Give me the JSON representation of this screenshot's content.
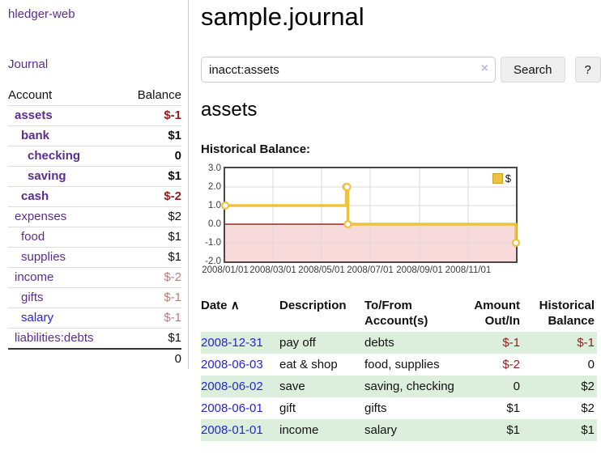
{
  "colors": {
    "purple": "#5c2d91",
    "blue": "#2525d6",
    "negative": "#8f1d1d",
    "negative_muted": "#b97c7c",
    "stripe_green": "#dcefdc",
    "gold": "#EDC240",
    "gold_dark": "#c9a227",
    "chart_border": "#484848",
    "clear_icon": "#c6bbdb"
  },
  "app": {
    "title": "hledger-web"
  },
  "sidebar": {
    "journal_link": "Journal",
    "table": {
      "account_header": "Account",
      "balance_header": "Balance",
      "rows": [
        {
          "account": "assets",
          "balance": "$-1",
          "depth": 1,
          "bold": true,
          "balance_class": "neg",
          "link_class": ""
        },
        {
          "account": "bank",
          "balance": "$1",
          "depth": 2,
          "bold": true,
          "balance_class": "",
          "link_class": ""
        },
        {
          "account": "checking",
          "balance": "0",
          "depth": 3,
          "bold": true,
          "balance_class": "",
          "link_class": ""
        },
        {
          "account": "saving",
          "balance": "$1",
          "depth": 3,
          "bold": true,
          "balance_class": "",
          "link_class": ""
        },
        {
          "account": "cash",
          "balance": "$-2",
          "depth": 2,
          "bold": true,
          "balance_class": "neg",
          "link_class": ""
        },
        {
          "account": "expenses",
          "balance": "$2",
          "depth": 1,
          "bold": false,
          "balance_class": "",
          "link_class": ""
        },
        {
          "account": "food",
          "balance": "$1",
          "depth": 2,
          "bold": false,
          "balance_class": "",
          "link_class": ""
        },
        {
          "account": "supplies",
          "balance": "$1",
          "depth": 2,
          "bold": false,
          "balance_class": "",
          "link_class": ""
        },
        {
          "account": "income",
          "balance": "$-2",
          "depth": 1,
          "bold": false,
          "balance_class": "negmuted",
          "link_class": ""
        },
        {
          "account": "gifts",
          "balance": "$-1",
          "depth": 2,
          "bold": false,
          "balance_class": "negmuted",
          "link_class": ""
        },
        {
          "account": "salary",
          "balance": "$-1",
          "depth": 2,
          "bold": false,
          "balance_class": "negmuted",
          "link_class": "blue"
        },
        {
          "account": "liabilities:debts",
          "balance": "$1",
          "depth": 1,
          "bold": false,
          "balance_class": "",
          "link_class": ""
        }
      ],
      "total": "0"
    }
  },
  "main": {
    "title": "sample.journal",
    "search": {
      "value": "inacct:assets",
      "clear_icon": "×",
      "button_label": "Search",
      "help_label": "?"
    },
    "account_heading": "assets",
    "register": {
      "headers": [
        "Date",
        "Description",
        "To/From Account(s)",
        "Amount Out/In",
        "Historical Balance"
      ],
      "sort_indicator": "∧",
      "rows": [
        {
          "date": "2008-12-31",
          "description": "pay off",
          "accounts": "debts",
          "amount": "$-1",
          "amount_class": "neg",
          "balance": "$-1",
          "balance_class": "neg"
        },
        {
          "date": "2008-06-03",
          "description": "eat & shop",
          "accounts": "food, supplies",
          "amount": "$-2",
          "amount_class": "neg",
          "balance": "0",
          "balance_class": ""
        },
        {
          "date": "2008-06-02",
          "description": "save",
          "accounts": "saving, checking",
          "amount": "0",
          "amount_class": "",
          "balance": "$2",
          "balance_class": ""
        },
        {
          "date": "2008-06-01",
          "description": "gift",
          "accounts": "gifts",
          "amount": "$1",
          "amount_class": "",
          "balance": "$2",
          "balance_class": ""
        },
        {
          "date": "2008-01-01",
          "description": "income",
          "accounts": "salary",
          "amount": "$1",
          "amount_class": "",
          "balance": "$1",
          "balance_class": ""
        }
      ]
    }
  },
  "chart_data": {
    "type": "line",
    "step": true,
    "title": "Historical Balance:",
    "xlim": [
      "2008-01-01",
      "2008-12-31"
    ],
    "ylim": [
      -2,
      3
    ],
    "x_ticks": [
      {
        "date": "2008-01-01",
        "label": "2008/01/01"
      },
      {
        "date": "2008-03-01",
        "label": "2008/03/01"
      },
      {
        "date": "2008-05-01",
        "label": "2008/05/01"
      },
      {
        "date": "2008-07-01",
        "label": "2008/07/01"
      },
      {
        "date": "2008-09-01",
        "label": "2008/09/01"
      },
      {
        "date": "2008-11-01",
        "label": "2008/11/01"
      }
    ],
    "y_ticks": [
      {
        "value": 3,
        "label": "3.0"
      },
      {
        "value": 2,
        "label": "2.0"
      },
      {
        "value": 1,
        "label": "1.0"
      },
      {
        "value": 0,
        "label": "0.0"
      },
      {
        "value": -1,
        "label": "-1.0"
      },
      {
        "value": -2,
        "label": "-2.0"
      }
    ],
    "series": [
      {
        "name": "$",
        "color": "#EDC240",
        "marker_fill": "#ffffff",
        "points": [
          [
            "2008-01-01",
            1
          ],
          [
            "2008-06-01",
            2
          ],
          [
            "2008-06-02",
            2
          ],
          [
            "2008-06-03",
            0
          ],
          [
            "2008-12-31",
            -1
          ]
        ]
      }
    ],
    "zero_line_color": "#8b0000",
    "negative_fill": "#f9dada",
    "grid_color": "#dadada",
    "legend": {
      "label": "$",
      "position": "top-right"
    }
  }
}
